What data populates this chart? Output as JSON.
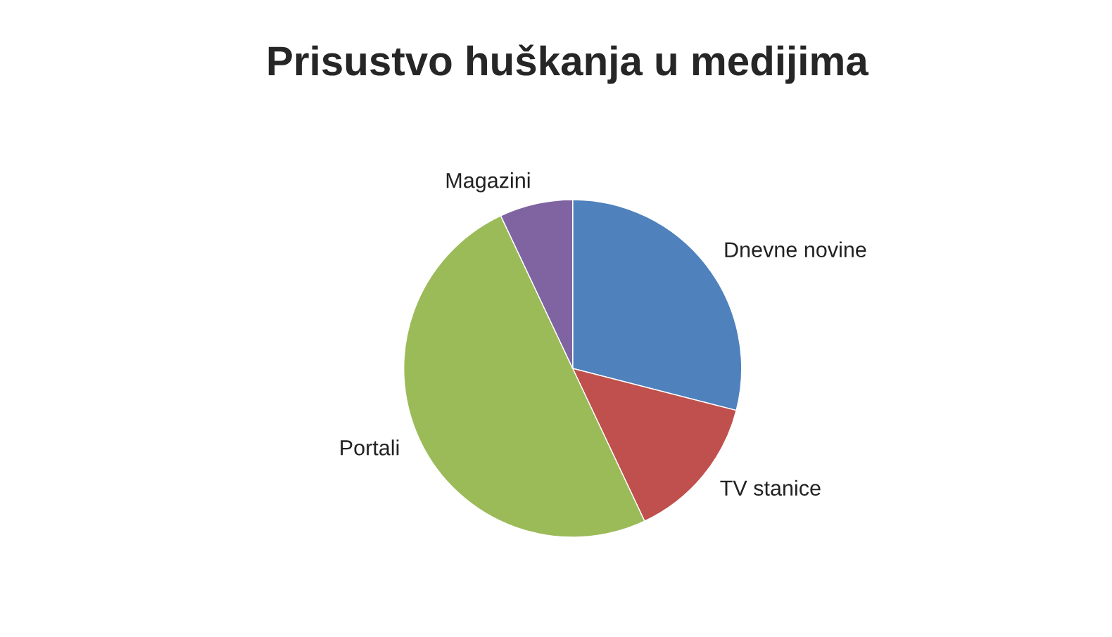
{
  "chart_data": {
    "type": "pie",
    "title": "Prisustvo huškanja u medijima",
    "categories": [
      "Dnevne novine",
      "TV stanice",
      "Portali",
      "Magazini"
    ],
    "values": [
      29,
      14,
      50,
      7
    ],
    "colors": [
      "#4f81bd",
      "#c0504d",
      "#9bbb59",
      "#8064a2"
    ],
    "legend": false
  }
}
